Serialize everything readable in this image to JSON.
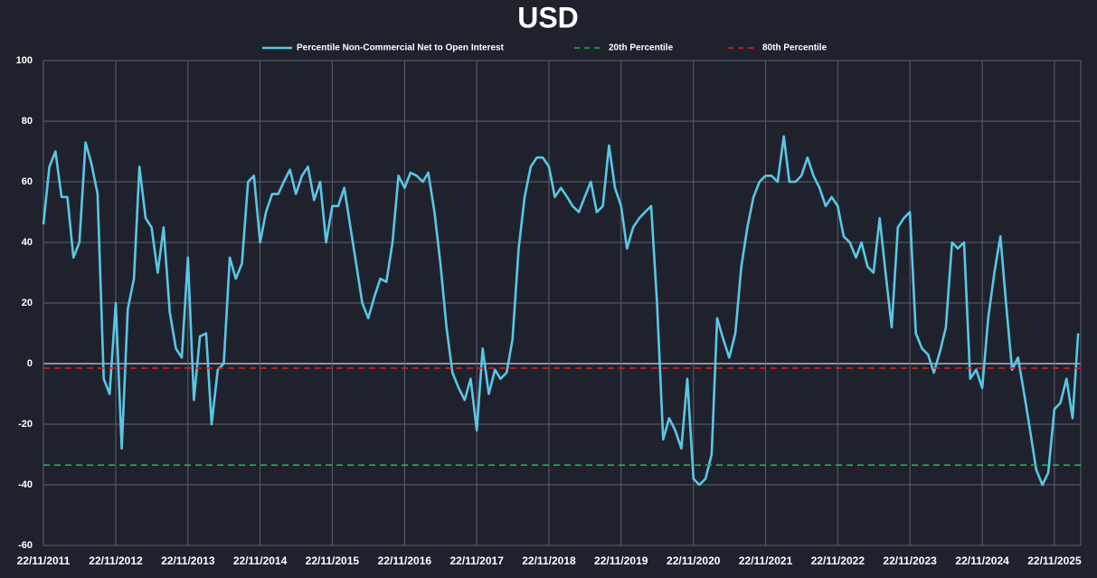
{
  "chart_data": {
    "type": "line",
    "title": "USD",
    "x": [
      "2011-11-22",
      "2011-12-22",
      "2012-01-22",
      "2012-02-22",
      "2012-03-22",
      "2012-04-22",
      "2012-05-22",
      "2012-06-22",
      "2012-07-22",
      "2012-08-22",
      "2012-09-22",
      "2012-10-22",
      "2012-11-22",
      "2012-12-22",
      "2013-01-22",
      "2013-02-22",
      "2013-03-22",
      "2013-04-22",
      "2013-05-22",
      "2013-06-22",
      "2013-07-22",
      "2013-08-22",
      "2013-09-22",
      "2013-10-22",
      "2013-11-22",
      "2013-12-22",
      "2014-01-22",
      "2014-02-22",
      "2014-03-22",
      "2014-04-22",
      "2014-05-22",
      "2014-06-22",
      "2014-07-22",
      "2014-08-22",
      "2014-09-22",
      "2014-10-22",
      "2014-11-22",
      "2014-12-22",
      "2015-01-22",
      "2015-02-22",
      "2015-03-22",
      "2015-04-22",
      "2015-05-22",
      "2015-06-22",
      "2015-07-22",
      "2015-08-22",
      "2015-09-22",
      "2015-10-22",
      "2015-11-22",
      "2015-12-22",
      "2016-01-22",
      "2016-02-22",
      "2016-03-22",
      "2016-04-22",
      "2016-05-22",
      "2016-06-22",
      "2016-07-22",
      "2016-08-22",
      "2016-09-22",
      "2016-10-22",
      "2016-11-22",
      "2016-12-22",
      "2017-01-22",
      "2017-02-22",
      "2017-03-22",
      "2017-04-22",
      "2017-05-22",
      "2017-06-22",
      "2017-07-22",
      "2017-08-22",
      "2017-09-22",
      "2017-10-22",
      "2017-11-22",
      "2017-12-22",
      "2018-01-22",
      "2018-02-22",
      "2018-03-22",
      "2018-04-22",
      "2018-05-22",
      "2018-06-22",
      "2018-07-22",
      "2018-08-22",
      "2018-09-22",
      "2018-10-22",
      "2018-11-22",
      "2018-12-22",
      "2019-01-22",
      "2019-02-22",
      "2019-03-22",
      "2019-04-22",
      "2019-05-22",
      "2019-06-22",
      "2019-07-22",
      "2019-08-22",
      "2019-09-22",
      "2019-10-22",
      "2019-11-22",
      "2019-12-22",
      "2020-01-22",
      "2020-02-22",
      "2020-03-22",
      "2020-04-22",
      "2020-05-22",
      "2020-06-22",
      "2020-07-22",
      "2020-08-22",
      "2020-09-22",
      "2020-10-22",
      "2020-11-22",
      "2020-12-22",
      "2021-01-22",
      "2021-02-22",
      "2021-03-22",
      "2021-04-22",
      "2021-05-22",
      "2021-06-22",
      "2021-07-22",
      "2021-08-22",
      "2021-09-22",
      "2021-10-22",
      "2021-11-22",
      "2021-12-22",
      "2022-01-22",
      "2022-02-22",
      "2022-03-22",
      "2022-04-22",
      "2022-05-22",
      "2022-06-22",
      "2022-07-22",
      "2022-08-22",
      "2022-09-22",
      "2022-10-22",
      "2022-11-22",
      "2022-12-22",
      "2023-01-22",
      "2023-02-22",
      "2023-03-22",
      "2023-04-22",
      "2023-05-22",
      "2023-06-22",
      "2023-07-22",
      "2023-08-22",
      "2023-09-22",
      "2023-10-22",
      "2023-11-22",
      "2023-12-22",
      "2024-01-22",
      "2024-02-22",
      "2024-03-22",
      "2024-04-22",
      "2024-05-22",
      "2024-06-22",
      "2024-07-22",
      "2024-08-22",
      "2024-09-22",
      "2024-10-22",
      "2024-11-22",
      "2024-12-22",
      "2025-01-22",
      "2025-02-22",
      "2025-03-22",
      "2025-04-22",
      "2025-05-22",
      "2025-06-22",
      "2025-07-22",
      "2025-08-22",
      "2025-09-22",
      "2025-10-22",
      "2025-11-22",
      "2025-12-22",
      "2026-01-22",
      "2026-02-22",
      "2026-03-22"
    ],
    "series": [
      {
        "name": "Percentile Non-Commercial Net to Open Interest",
        "color": "#5ac6e6",
        "values": [
          46,
          65,
          70,
          55,
          55,
          35,
          40,
          73,
          66,
          56,
          -5,
          -10,
          20,
          -28,
          18,
          28,
          65,
          48,
          45,
          30,
          45,
          17,
          5,
          2,
          35,
          -12,
          9,
          10,
          -20,
          -2,
          0,
          35,
          28,
          33,
          60,
          62,
          40,
          50,
          56,
          56,
          60,
          64,
          56,
          62,
          65,
          54,
          60,
          40,
          52,
          52,
          58,
          45,
          33,
          20,
          15,
          22,
          28,
          27,
          40,
          62,
          58,
          63,
          62,
          60,
          63,
          50,
          33,
          12,
          -3,
          -8,
          -12,
          -5,
          -22,
          5,
          -10,
          -2,
          -5,
          -3,
          8,
          38,
          55,
          65,
          68,
          68,
          65,
          55,
          58,
          55,
          52,
          50,
          55,
          60,
          50,
          52,
          72,
          58,
          52,
          38,
          45,
          48,
          50,
          52,
          20,
          -25,
          -18,
          -22,
          -28,
          -5,
          -38,
          -40,
          -38,
          -30,
          15,
          8,
          2,
          10,
          32,
          45,
          55,
          60,
          62,
          62,
          60,
          75,
          60,
          60,
          62,
          68,
          62,
          58,
          52,
          55,
          52,
          42,
          40,
          35,
          40,
          32,
          30,
          48,
          30,
          12,
          45,
          48,
          50,
          10,
          5,
          3,
          -3,
          4,
          12,
          40,
          38,
          40,
          -5,
          -2,
          -8,
          15,
          30,
          42,
          20,
          -2,
          2,
          -10,
          -22,
          -35,
          -40,
          -36,
          -15,
          -13,
          -5,
          -18,
          10
        ]
      },
      {
        "name": "20th Percentile",
        "color": "#1fb34a",
        "dash": true,
        "x": [
          "2011-11-22",
          "2026-04-04"
        ],
        "values": [
          -33.5,
          -33.5
        ]
      },
      {
        "name": "80th Percentile",
        "color": "#e21f1f",
        "dash": true,
        "x": [
          "2011-11-22",
          "2026-04-04"
        ],
        "values": [
          -1.5,
          -1.5
        ]
      }
    ],
    "xlim": [
      "2011-11-22",
      "2026-04-04"
    ],
    "xticks": [
      {
        "value": "2011-11-22",
        "label": "22/11/2011"
      },
      {
        "value": "2012-11-22",
        "label": "22/11/2012"
      },
      {
        "value": "2013-11-22",
        "label": "22/11/2013"
      },
      {
        "value": "2014-11-22",
        "label": "22/11/2014"
      },
      {
        "value": "2015-11-22",
        "label": "22/11/2015"
      },
      {
        "value": "2016-11-22",
        "label": "22/11/2016"
      },
      {
        "value": "2017-11-22",
        "label": "22/11/2017"
      },
      {
        "value": "2018-11-22",
        "label": "22/11/2018"
      },
      {
        "value": "2019-11-22",
        "label": "22/11/2019"
      },
      {
        "value": "2020-11-22",
        "label": "22/11/2020"
      },
      {
        "value": "2021-11-22",
        "label": "22/11/2021"
      },
      {
        "value": "2022-11-22",
        "label": "22/11/2022"
      },
      {
        "value": "2023-11-22",
        "label": "22/11/2023"
      },
      {
        "value": "2024-11-22",
        "label": "22/11/2024"
      },
      {
        "value": "2025-11-22",
        "label": "22/11/2025"
      }
    ],
    "ylim": [
      -60,
      100
    ],
    "yticks": [
      -60,
      -40,
      -20,
      0,
      20,
      40,
      60,
      80,
      100
    ],
    "grid": true,
    "legend": "top"
  }
}
